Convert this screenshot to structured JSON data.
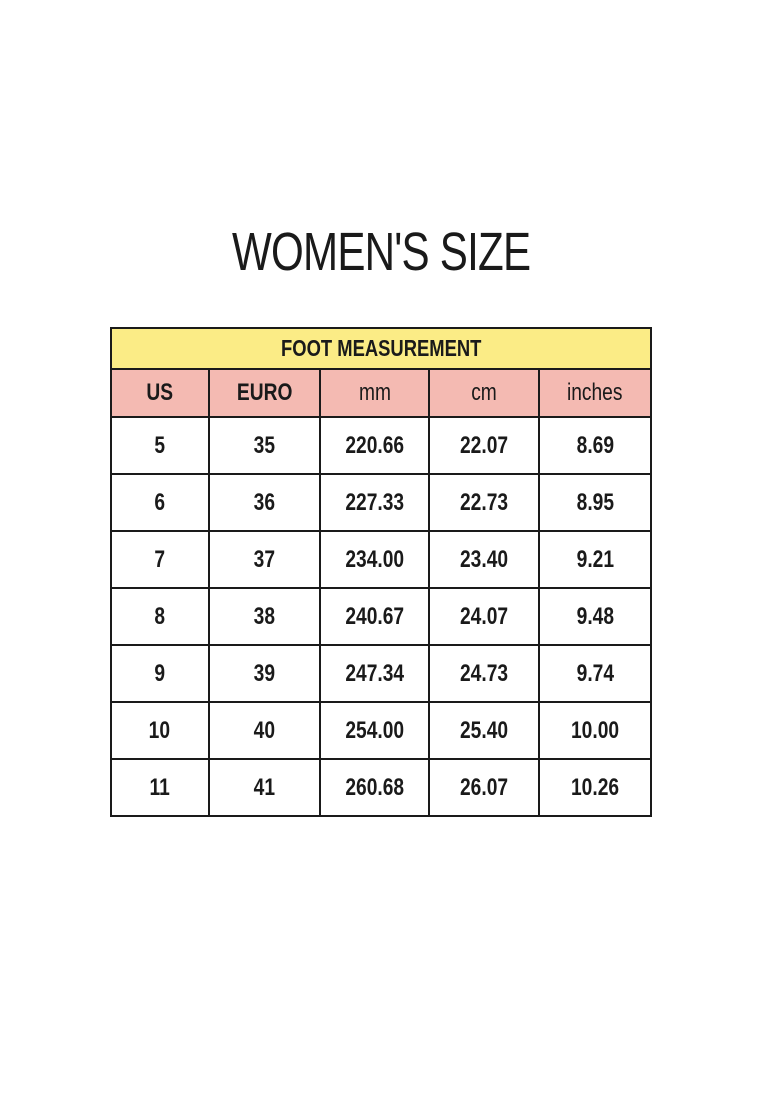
{
  "title": "WOMEN'S SIZE",
  "table": {
    "caption": "FOOT MEASUREMENT",
    "columns": [
      "US",
      "EURO",
      "mm",
      "cm",
      "inches"
    ],
    "rows": [
      [
        "5",
        "35",
        "220.66",
        "22.07",
        "8.69"
      ],
      [
        "6",
        "36",
        "227.33",
        "22.73",
        "8.95"
      ],
      [
        "7",
        "37",
        "234.00",
        "23.40",
        "9.21"
      ],
      [
        "8",
        "38",
        "240.67",
        "24.07",
        "9.48"
      ],
      [
        "9",
        "39",
        "247.34",
        "24.73",
        "9.74"
      ],
      [
        "10",
        "40",
        "254.00",
        "25.40",
        "10.00"
      ],
      [
        "11",
        "41",
        "260.68",
        "26.07",
        "10.26"
      ]
    ]
  },
  "colors": {
    "caption_bg": "#fbec86",
    "header_bg": "#f4bab2"
  }
}
